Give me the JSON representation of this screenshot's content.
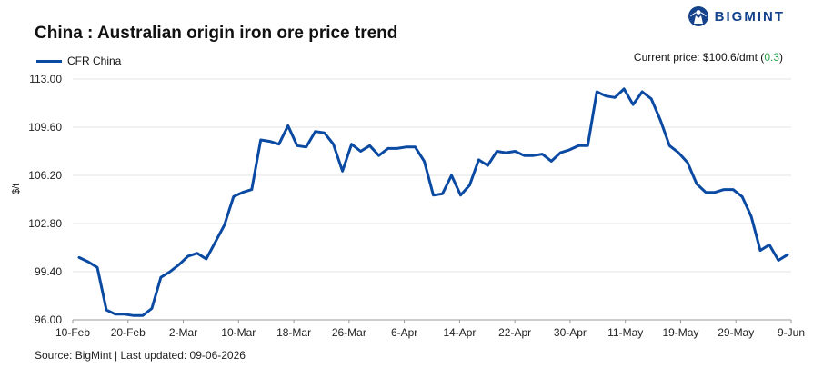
{
  "brand": {
    "name": "BIGMINT",
    "logo_icon": "bigmint-globe-logo",
    "color": "#14438c"
  },
  "title": "China : Australian origin iron ore price trend",
  "legend": {
    "label": "CFR China",
    "color": "#0b4aa2"
  },
  "current_price": {
    "prefix": "Current price: $100.6/dmt (",
    "change": "0.3",
    "suffix": ")",
    "change_color": "#2aa34a"
  },
  "source": "Source: BigMint | Last updated: 09-06-2026",
  "chart_data": {
    "type": "line",
    "title": "China : Australian origin iron ore price trend",
    "ylabel": "$/t",
    "xlabel": "",
    "ylim": [
      96.0,
      113.0
    ],
    "yticks": [
      "96.00",
      "99.40",
      "102.80",
      "106.20",
      "109.60",
      "113.00"
    ],
    "grid": true,
    "legend_position": "top-left",
    "xticks": [
      "10-Feb",
      "20-Feb",
      "2-Mar",
      "10-Mar",
      "18-Mar",
      "26-Mar",
      "6-Apr",
      "14-Apr",
      "22-Apr",
      "30-Apr",
      "11-May",
      "19-May",
      "29-May",
      "9-Jun"
    ],
    "series": [
      {
        "name": "CFR China",
        "color": "#0b4aa2",
        "values": [
          100.4,
          100.1,
          99.7,
          96.7,
          96.4,
          96.4,
          96.3,
          96.3,
          96.8,
          99.0,
          99.4,
          99.9,
          100.5,
          100.7,
          100.3,
          101.5,
          102.7,
          104.7,
          105.0,
          105.2,
          108.7,
          108.6,
          108.4,
          109.7,
          108.3,
          108.2,
          109.3,
          109.2,
          108.4,
          106.5,
          108.4,
          107.9,
          108.3,
          107.6,
          108.1,
          108.1,
          108.2,
          108.2,
          107.2,
          104.8,
          104.9,
          106.2,
          104.8,
          105.5,
          107.3,
          106.9,
          107.9,
          107.8,
          107.9,
          107.6,
          107.6,
          107.7,
          107.2,
          107.8,
          108.0,
          108.3,
          108.3,
          112.1,
          111.8,
          111.7,
          112.3,
          111.2,
          112.1,
          111.6,
          110.1,
          108.3,
          107.8,
          107.1,
          105.6,
          105.0,
          105.0,
          105.2,
          105.2,
          104.7,
          103.3,
          100.9,
          101.3,
          100.2,
          100.6
        ]
      }
    ]
  }
}
